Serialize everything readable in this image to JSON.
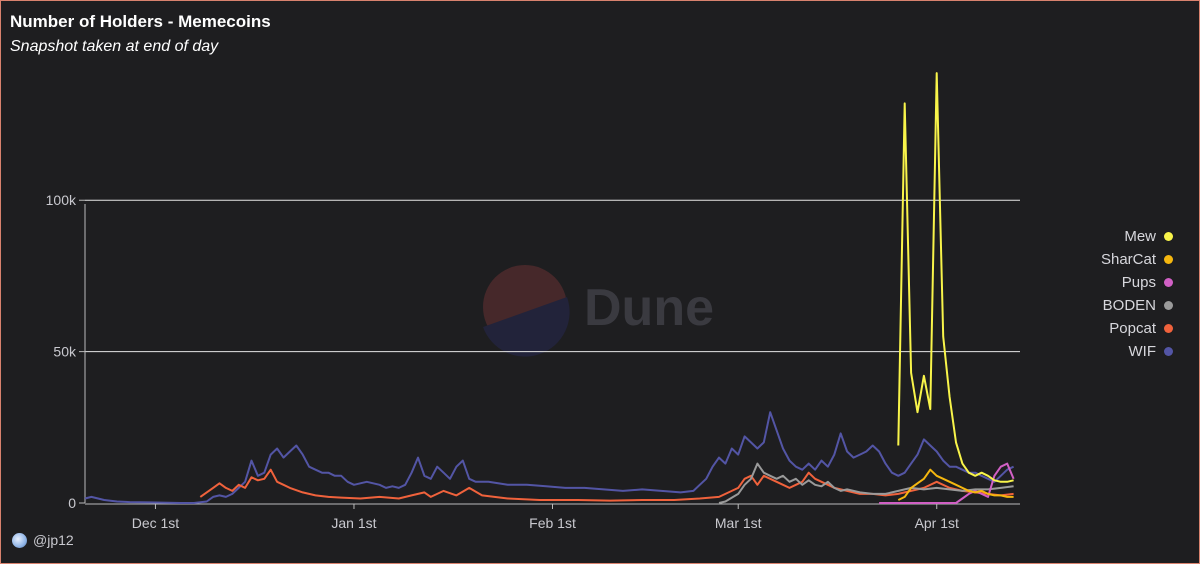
{
  "header": {
    "title": "Number of Holders - Memecoins",
    "subtitle": "Snapshot taken at end of day"
  },
  "watermark": {
    "text": "Dune"
  },
  "attribution": {
    "user": "@jp12"
  },
  "chart_data": {
    "type": "line",
    "title": "Number of Holders - Memecoins",
    "subtitle": "Snapshot taken at end of day",
    "xlabel": "",
    "ylabel": "",
    "x_range": [
      "2023-11-20",
      "2024-04-14"
    ],
    "ylim": [
      0,
      145000
    ],
    "y_ticks": [
      0,
      50000,
      100000
    ],
    "y_tick_labels": [
      "0",
      "50k",
      "100k"
    ],
    "x_ticks": [
      "2023-12-01",
      "2024-01-01",
      "2024-02-01",
      "2024-03-01",
      "2024-04-01"
    ],
    "x_tick_labels": [
      "Dec 1st",
      "Jan 1st",
      "Feb 1st",
      "Mar 1st",
      "Apr 1st"
    ],
    "grid": "horizontal",
    "legend_position": "right",
    "series": [
      {
        "name": "Mew",
        "color": "#f8f44a",
        "points": [
          [
            "2024-03-26",
            19000
          ],
          [
            "2024-03-27",
            132000
          ],
          [
            "2024-03-28",
            43000
          ],
          [
            "2024-03-29",
            30000
          ],
          [
            "2024-03-30",
            42000
          ],
          [
            "2024-03-31",
            31000
          ],
          [
            "2024-04-01",
            142000
          ],
          [
            "2024-04-02",
            55000
          ],
          [
            "2024-04-03",
            35000
          ],
          [
            "2024-04-04",
            20000
          ],
          [
            "2024-04-05",
            13000
          ],
          [
            "2024-04-06",
            10000
          ],
          [
            "2024-04-07",
            9000
          ],
          [
            "2024-04-08",
            10000
          ],
          [
            "2024-04-09",
            9000
          ],
          [
            "2024-04-10",
            7500
          ],
          [
            "2024-04-11",
            7000
          ],
          [
            "2024-04-12",
            7000
          ],
          [
            "2024-04-13",
            7500
          ]
        ]
      },
      {
        "name": "SharCat",
        "color": "#f5b70f",
        "points": [
          [
            "2024-03-26",
            1000
          ],
          [
            "2024-03-27",
            2000
          ],
          [
            "2024-03-28",
            5000
          ],
          [
            "2024-03-29",
            6500
          ],
          [
            "2024-03-30",
            8000
          ],
          [
            "2024-03-31",
            11000
          ],
          [
            "2024-04-01",
            9000
          ],
          [
            "2024-04-02",
            8000
          ],
          [
            "2024-04-03",
            7000
          ],
          [
            "2024-04-04",
            6000
          ],
          [
            "2024-04-05",
            5000
          ],
          [
            "2024-04-06",
            4000
          ],
          [
            "2024-04-07",
            3500
          ],
          [
            "2024-04-08",
            4000
          ],
          [
            "2024-04-09",
            3000
          ],
          [
            "2024-04-10",
            2500
          ],
          [
            "2024-04-11",
            2500
          ],
          [
            "2024-04-12",
            2000
          ],
          [
            "2024-04-13",
            2000
          ]
        ]
      },
      {
        "name": "Pups",
        "color": "#d160c5",
        "points": [
          [
            "2024-03-23",
            0
          ],
          [
            "2024-03-25",
            0
          ],
          [
            "2024-03-29",
            0
          ],
          [
            "2024-04-02",
            0
          ],
          [
            "2024-04-04",
            0
          ],
          [
            "2024-04-05",
            1500
          ],
          [
            "2024-04-06",
            3000
          ],
          [
            "2024-04-07",
            4000
          ],
          [
            "2024-04-08",
            3000
          ],
          [
            "2024-04-09",
            2000
          ],
          [
            "2024-04-10",
            9000
          ],
          [
            "2024-04-11",
            12000
          ],
          [
            "2024-04-12",
            13000
          ],
          [
            "2024-04-13",
            8000
          ]
        ]
      },
      {
        "name": "BODEN",
        "color": "#9a9a9a",
        "points": [
          [
            "2024-02-27",
            0
          ],
          [
            "2024-02-28",
            500
          ],
          [
            "2024-03-01",
            3000
          ],
          [
            "2024-03-02",
            6000
          ],
          [
            "2024-03-03",
            8000
          ],
          [
            "2024-03-04",
            13000
          ],
          [
            "2024-03-05",
            10000
          ],
          [
            "2024-03-06",
            9000
          ],
          [
            "2024-03-07",
            8000
          ],
          [
            "2024-03-08",
            9000
          ],
          [
            "2024-03-09",
            7000
          ],
          [
            "2024-03-10",
            8000
          ],
          [
            "2024-03-11",
            6000
          ],
          [
            "2024-03-12",
            7500
          ],
          [
            "2024-03-13",
            6000
          ],
          [
            "2024-03-14",
            5500
          ],
          [
            "2024-03-15",
            7000
          ],
          [
            "2024-03-16",
            5000
          ],
          [
            "2024-03-17",
            4000
          ],
          [
            "2024-03-18",
            4500
          ],
          [
            "2024-03-19",
            4000
          ],
          [
            "2024-03-20",
            3500
          ],
          [
            "2024-03-22",
            3000
          ],
          [
            "2024-03-24",
            3000
          ],
          [
            "2024-03-26",
            4000
          ],
          [
            "2024-03-28",
            5000
          ],
          [
            "2024-03-30",
            4500
          ],
          [
            "2024-04-01",
            5000
          ],
          [
            "2024-04-03",
            4500
          ],
          [
            "2024-04-05",
            4000
          ],
          [
            "2024-04-07",
            4500
          ],
          [
            "2024-04-09",
            4500
          ],
          [
            "2024-04-11",
            5000
          ],
          [
            "2024-04-13",
            5500
          ]
        ]
      },
      {
        "name": "Popcat",
        "color": "#f0623c",
        "points": [
          [
            "2023-12-08",
            2000
          ],
          [
            "2023-12-09",
            3500
          ],
          [
            "2023-12-10",
            5000
          ],
          [
            "2023-12-11",
            6500
          ],
          [
            "2023-12-12",
            5000
          ],
          [
            "2023-12-13",
            4000
          ],
          [
            "2023-12-14",
            6000
          ],
          [
            "2023-12-15",
            5000
          ],
          [
            "2023-12-16",
            8500
          ],
          [
            "2023-12-17",
            7500
          ],
          [
            "2023-12-18",
            8000
          ],
          [
            "2023-12-19",
            11000
          ],
          [
            "2023-12-20",
            7000
          ],
          [
            "2023-12-21",
            6000
          ],
          [
            "2023-12-22",
            5000
          ],
          [
            "2023-12-24",
            3500
          ],
          [
            "2023-12-26",
            2500
          ],
          [
            "2023-12-28",
            2000
          ],
          [
            "2023-12-30",
            1800
          ],
          [
            "2024-01-02",
            1500
          ],
          [
            "2024-01-05",
            2000
          ],
          [
            "2024-01-08",
            1500
          ],
          [
            "2024-01-10",
            2500
          ],
          [
            "2024-01-12",
            3500
          ],
          [
            "2024-01-13",
            2000
          ],
          [
            "2024-01-15",
            4000
          ],
          [
            "2024-01-17",
            2500
          ],
          [
            "2024-01-19",
            5000
          ],
          [
            "2024-01-21",
            2500
          ],
          [
            "2024-01-25",
            1500
          ],
          [
            "2024-01-30",
            1000
          ],
          [
            "2024-02-05",
            1000
          ],
          [
            "2024-02-10",
            800
          ],
          [
            "2024-02-15",
            1000
          ],
          [
            "2024-02-20",
            1000
          ],
          [
            "2024-02-24",
            1500
          ],
          [
            "2024-02-27",
            2000
          ],
          [
            "2024-02-29",
            4000
          ],
          [
            "2024-03-01",
            5000
          ],
          [
            "2024-03-02",
            8000
          ],
          [
            "2024-03-03",
            9000
          ],
          [
            "2024-03-04",
            6000
          ],
          [
            "2024-03-05",
            9000
          ],
          [
            "2024-03-06",
            8000
          ],
          [
            "2024-03-07",
            7000
          ],
          [
            "2024-03-08",
            6000
          ],
          [
            "2024-03-09",
            5000
          ],
          [
            "2024-03-10",
            6000
          ],
          [
            "2024-03-11",
            7000
          ],
          [
            "2024-03-12",
            10000
          ],
          [
            "2024-03-13",
            8000
          ],
          [
            "2024-03-14",
            7000
          ],
          [
            "2024-03-15",
            6000
          ],
          [
            "2024-03-16",
            5000
          ],
          [
            "2024-03-18",
            4000
          ],
          [
            "2024-03-20",
            3000
          ],
          [
            "2024-03-22",
            3000
          ],
          [
            "2024-03-24",
            2500
          ],
          [
            "2024-03-26",
            3000
          ],
          [
            "2024-03-28",
            4000
          ],
          [
            "2024-03-30",
            5000
          ],
          [
            "2024-04-01",
            7000
          ],
          [
            "2024-04-03",
            5000
          ],
          [
            "2024-04-05",
            4000
          ],
          [
            "2024-04-07",
            3500
          ],
          [
            "2024-04-09",
            3000
          ],
          [
            "2024-04-11",
            2500
          ],
          [
            "2024-04-13",
            3000
          ]
        ]
      },
      {
        "name": "WIF",
        "color": "#5355a5",
        "points": [
          [
            "2023-11-20",
            1500
          ],
          [
            "2023-11-21",
            2000
          ],
          [
            "2023-11-23",
            1000
          ],
          [
            "2023-11-25",
            500
          ],
          [
            "2023-11-27",
            300
          ],
          [
            "2023-11-30",
            200
          ],
          [
            "2023-12-03",
            100
          ],
          [
            "2023-12-05",
            0
          ],
          [
            "2023-12-07",
            0
          ],
          [
            "2023-12-09",
            500
          ],
          [
            "2023-12-10",
            2000
          ],
          [
            "2023-12-11",
            2500
          ],
          [
            "2023-12-12",
            2000
          ],
          [
            "2023-12-13",
            3000
          ],
          [
            "2023-12-14",
            5000
          ],
          [
            "2023-12-15",
            7000
          ],
          [
            "2023-12-16",
            14000
          ],
          [
            "2023-12-17",
            9000
          ],
          [
            "2023-12-18",
            10000
          ],
          [
            "2023-12-19",
            16000
          ],
          [
            "2023-12-20",
            18000
          ],
          [
            "2023-12-21",
            15000
          ],
          [
            "2023-12-22",
            17000
          ],
          [
            "2023-12-23",
            19000
          ],
          [
            "2023-12-24",
            16000
          ],
          [
            "2023-12-25",
            12000
          ],
          [
            "2023-12-26",
            11000
          ],
          [
            "2023-12-27",
            10000
          ],
          [
            "2023-12-28",
            10000
          ],
          [
            "2023-12-29",
            9000
          ],
          [
            "2023-12-30",
            9000
          ],
          [
            "2023-12-31",
            7000
          ],
          [
            "2024-01-01",
            6000
          ],
          [
            "2024-01-02",
            6500
          ],
          [
            "2024-01-03",
            7000
          ],
          [
            "2024-01-04",
            6500
          ],
          [
            "2024-01-05",
            6000
          ],
          [
            "2024-01-06",
            5000
          ],
          [
            "2024-01-07",
            5500
          ],
          [
            "2024-01-08",
            5000
          ],
          [
            "2024-01-09",
            6000
          ],
          [
            "2024-01-10",
            10000
          ],
          [
            "2024-01-11",
            15000
          ],
          [
            "2024-01-12",
            9000
          ],
          [
            "2024-01-13",
            8000
          ],
          [
            "2024-01-14",
            12000
          ],
          [
            "2024-01-15",
            10000
          ],
          [
            "2024-01-16",
            8000
          ],
          [
            "2024-01-17",
            12000
          ],
          [
            "2024-01-18",
            14000
          ],
          [
            "2024-01-19",
            8000
          ],
          [
            "2024-01-20",
            7000
          ],
          [
            "2024-01-22",
            7000
          ],
          [
            "2024-01-25",
            6000
          ],
          [
            "2024-01-28",
            6000
          ],
          [
            "2024-01-31",
            5500
          ],
          [
            "2024-02-03",
            5000
          ],
          [
            "2024-02-06",
            5000
          ],
          [
            "2024-02-09",
            4500
          ],
          [
            "2024-02-12",
            4000
          ],
          [
            "2024-02-15",
            4500
          ],
          [
            "2024-02-18",
            4000
          ],
          [
            "2024-02-21",
            3500
          ],
          [
            "2024-02-23",
            4000
          ],
          [
            "2024-02-24",
            6000
          ],
          [
            "2024-02-25",
            8000
          ],
          [
            "2024-02-26",
            12000
          ],
          [
            "2024-02-27",
            15000
          ],
          [
            "2024-02-28",
            13000
          ],
          [
            "2024-02-29",
            18000
          ],
          [
            "2024-03-01",
            16000
          ],
          [
            "2024-03-02",
            22000
          ],
          [
            "2024-03-03",
            20000
          ],
          [
            "2024-03-04",
            18000
          ],
          [
            "2024-03-05",
            20000
          ],
          [
            "2024-03-06",
            30000
          ],
          [
            "2024-03-07",
            24000
          ],
          [
            "2024-03-08",
            18000
          ],
          [
            "2024-03-09",
            14000
          ],
          [
            "2024-03-10",
            12000
          ],
          [
            "2024-03-11",
            11000
          ],
          [
            "2024-03-12",
            13000
          ],
          [
            "2024-03-13",
            11000
          ],
          [
            "2024-03-14",
            14000
          ],
          [
            "2024-03-15",
            12000
          ],
          [
            "2024-03-16",
            16000
          ],
          [
            "2024-03-17",
            23000
          ],
          [
            "2024-03-18",
            17000
          ],
          [
            "2024-03-19",
            15000
          ],
          [
            "2024-03-20",
            16000
          ],
          [
            "2024-03-21",
            17000
          ],
          [
            "2024-03-22",
            19000
          ],
          [
            "2024-03-23",
            17000
          ],
          [
            "2024-03-24",
            13000
          ],
          [
            "2024-03-25",
            10000
          ],
          [
            "2024-03-26",
            9000
          ],
          [
            "2024-03-27",
            10000
          ],
          [
            "2024-03-28",
            13000
          ],
          [
            "2024-03-29",
            16000
          ],
          [
            "2024-03-30",
            21000
          ],
          [
            "2024-03-31",
            19000
          ],
          [
            "2024-04-01",
            17000
          ],
          [
            "2024-04-02",
            14000
          ],
          [
            "2024-04-03",
            12000
          ],
          [
            "2024-04-04",
            12000
          ],
          [
            "2024-04-05",
            11000
          ],
          [
            "2024-04-06",
            10000
          ],
          [
            "2024-04-07",
            10000
          ],
          [
            "2024-04-08",
            9000
          ],
          [
            "2024-04-09",
            8000
          ],
          [
            "2024-04-10",
            7000
          ],
          [
            "2024-04-11",
            9000
          ],
          [
            "2024-04-12",
            11000
          ],
          [
            "2024-04-13",
            12000
          ]
        ]
      }
    ]
  }
}
